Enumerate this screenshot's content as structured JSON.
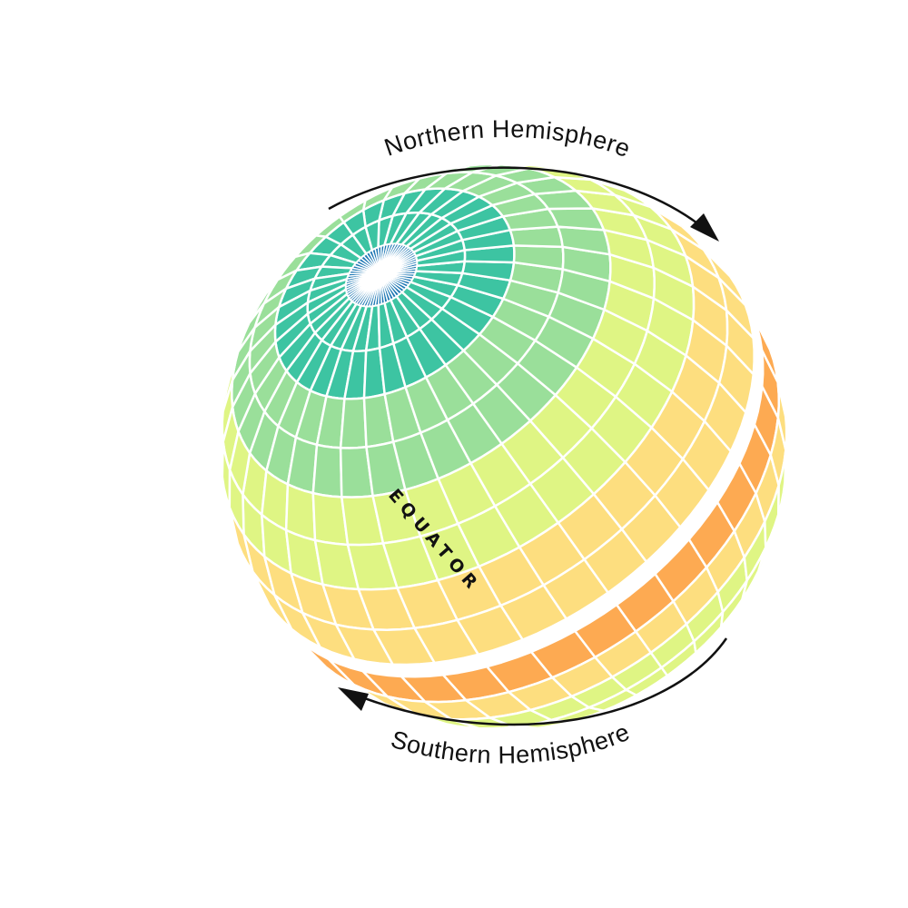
{
  "labels": {
    "north": "Northern Hemisphere",
    "south": "Southern Hemisphere",
    "equator": "EQUATOR"
  },
  "colors": {
    "background": "#ffffff",
    "grid_line": "#ffffff",
    "arrow": "#111111",
    "text": "#111111",
    "band_polar": "#1f78b4",
    "band_teal": "#3dc4a2",
    "band_mint": "#9adf9a",
    "band_lime": "#dff584",
    "band_light_orange": "#fdde7f",
    "band_orange": "#fdaa52"
  },
  "globe": {
    "latitude_band_colors_north_to_south": [
      "#1f78b4",
      "#3dc4a2",
      "#3dc4a2",
      "#9adf9a",
      "#9adf9a",
      "#dff584",
      "#dff584",
      "#fdde7f",
      "#fdde7f",
      "#fdaa52",
      "#fdaa52",
      "#fdde7f",
      "#dff584",
      "#dff584",
      "#9adf9a",
      "#9adf9a"
    ]
  }
}
